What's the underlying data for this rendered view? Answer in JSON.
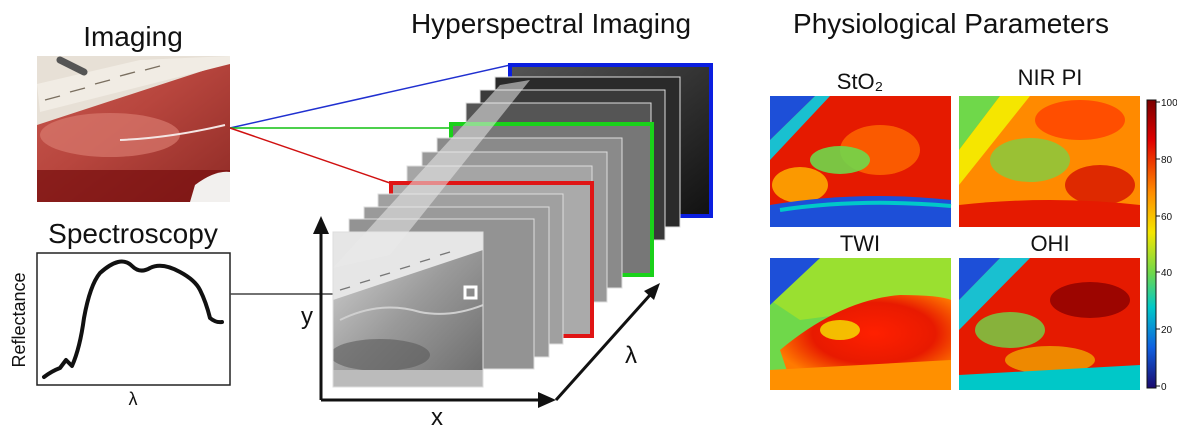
{
  "sections": {
    "imaging": "Imaging",
    "hyperspectral": "Hyperspectral Imaging",
    "physiological": "Physiological Parameters",
    "spectroscopy": "Spectroscopy"
  },
  "spectrum": {
    "ylabel": "Reflectance",
    "xlabel": "λ"
  },
  "cube_axes": {
    "x": "x",
    "y": "y",
    "lambda": "λ"
  },
  "parameter_maps": [
    {
      "label": "StO₂"
    },
    {
      "label": "NIR PI"
    },
    {
      "label": "TWI"
    },
    {
      "label": "OHI"
    }
  ],
  "colorbar": {
    "ticks": [
      "100",
      "80",
      "60",
      "40",
      "20",
      "0"
    ],
    "colors": [
      "#7a0000",
      "#e00000",
      "#ff8c00",
      "#f5e600",
      "#6fd84a",
      "#00c8c8",
      "#1060e0",
      "#1a0a6e"
    ]
  },
  "frame_colors": {
    "blue": "#0a1ee0",
    "green": "#1ad11a",
    "red": "#e01515"
  }
}
